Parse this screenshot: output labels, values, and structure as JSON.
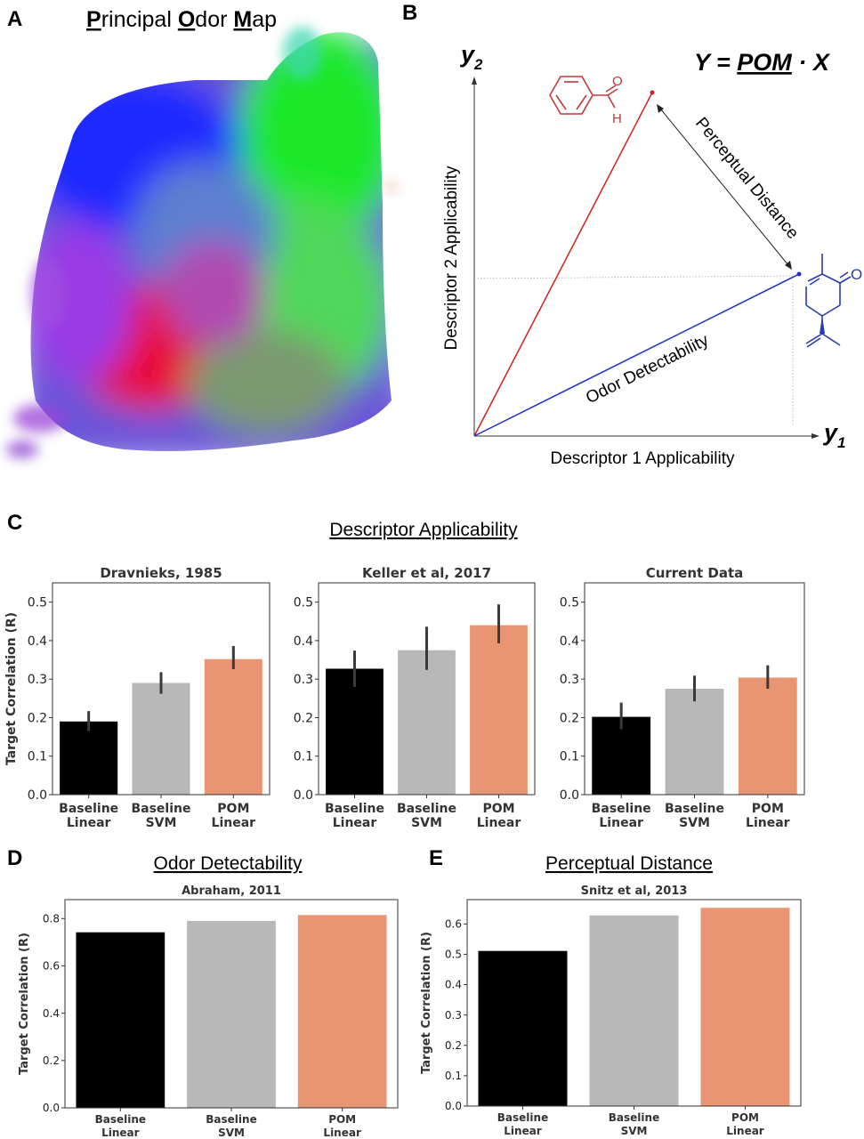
{
  "panel_letters": {
    "a": "A",
    "b": "B",
    "c": "C",
    "d": "D",
    "e": "E"
  },
  "map_title": {
    "p": "P",
    "p_rest": "rincipal ",
    "o": "O",
    "o_rest": "dor ",
    "m": "M",
    "m_rest": "ap"
  },
  "equation": {
    "lhs": "Y = ",
    "pom": "POM",
    "dot": " · ",
    "x": "X"
  },
  "diagram": {
    "y2": "y",
    "y2_sub": "2",
    "y1": "y",
    "y1_sub": "1",
    "x_label": "Descriptor 1 Applicability",
    "y_label": "Descriptor 2 Applicability",
    "perceptual_distance": "Perceptual Distance",
    "odor_detectability": "Odor Detectability",
    "o_atom": "O",
    "h_atom": "H",
    "o_atom2": "O"
  },
  "section_titles": {
    "c": "Descriptor Applicability",
    "d": "Odor Detectability",
    "e": "Perceptual Distance"
  },
  "colors": {
    "black": "#000000",
    "gray": "#b8b8b8",
    "salmon": "#e99574",
    "red_mol": "#c0393b",
    "blue_mol": "#2a3bb0"
  },
  "chart_data": [
    {
      "type": "bar",
      "title": "Dravnieks, 1985",
      "ylabel": "Target Correlation (R)",
      "categories": [
        [
          "Baseline",
          "Linear"
        ],
        [
          "Baseline",
          "SVM"
        ],
        [
          "POM",
          "Linear"
        ]
      ],
      "values": [
        0.19,
        0.29,
        0.352
      ],
      "errors": [
        [
          0.165,
          0.217
        ],
        [
          0.262,
          0.318
        ],
        [
          0.326,
          0.386
        ]
      ],
      "ylim": [
        0,
        0.55
      ],
      "yticks": [
        "0.0",
        "0.1",
        "0.2",
        "0.3",
        "0.4",
        "0.5"
      ]
    },
    {
      "type": "bar",
      "title": "Keller et al, 2017",
      "ylabel": "",
      "categories": [
        [
          "Baseline",
          "Linear"
        ],
        [
          "Baseline",
          "SVM"
        ],
        [
          "POM",
          "Linear"
        ]
      ],
      "values": [
        0.327,
        0.375,
        0.44
      ],
      "errors": [
        [
          0.28,
          0.374
        ],
        [
          0.324,
          0.436
        ],
        [
          0.393,
          0.494
        ]
      ],
      "ylim": [
        0,
        0.55
      ],
      "yticks": [
        "0.0",
        "0.1",
        "0.2",
        "0.3",
        "0.4",
        "0.5"
      ]
    },
    {
      "type": "bar",
      "title": "Current Data",
      "ylabel": "",
      "categories": [
        [
          "Baseline",
          "Linear"
        ],
        [
          "Baseline",
          "SVM"
        ],
        [
          "POM",
          "Linear"
        ]
      ],
      "values": [
        0.202,
        0.275,
        0.304
      ],
      "errors": [
        [
          0.17,
          0.239
        ],
        [
          0.242,
          0.309
        ],
        [
          0.275,
          0.336
        ]
      ],
      "ylim": [
        0,
        0.55
      ],
      "yticks": [
        "0.0",
        "0.1",
        "0.2",
        "0.3",
        "0.4",
        "0.5"
      ]
    },
    {
      "type": "bar",
      "title": "Abraham, 2011",
      "ylabel": "Target Correlation (R)",
      "categories": [
        [
          "Baseline",
          "Linear"
        ],
        [
          "Baseline",
          "SVM"
        ],
        [
          "POM",
          "Linear"
        ]
      ],
      "values": [
        0.742,
        0.79,
        0.815
      ],
      "errors": [],
      "ylim": [
        0,
        0.88
      ],
      "yticks": [
        "0.0",
        "0.2",
        "0.4",
        "0.6",
        "0.8"
      ]
    },
    {
      "type": "bar",
      "title": "Snitz et al, 2013",
      "ylabel": "Target Correlation (R)",
      "categories": [
        [
          "Baseline",
          "Linear"
        ],
        [
          "Baseline",
          "SVM"
        ],
        [
          "POM",
          "Linear"
        ]
      ],
      "values": [
        0.511,
        0.628,
        0.653
      ],
      "errors": [],
      "ylim": [
        0,
        0.68
      ],
      "yticks": [
        "0.0",
        "0.1",
        "0.2",
        "0.3",
        "0.4",
        "0.5",
        "0.6"
      ]
    }
  ]
}
